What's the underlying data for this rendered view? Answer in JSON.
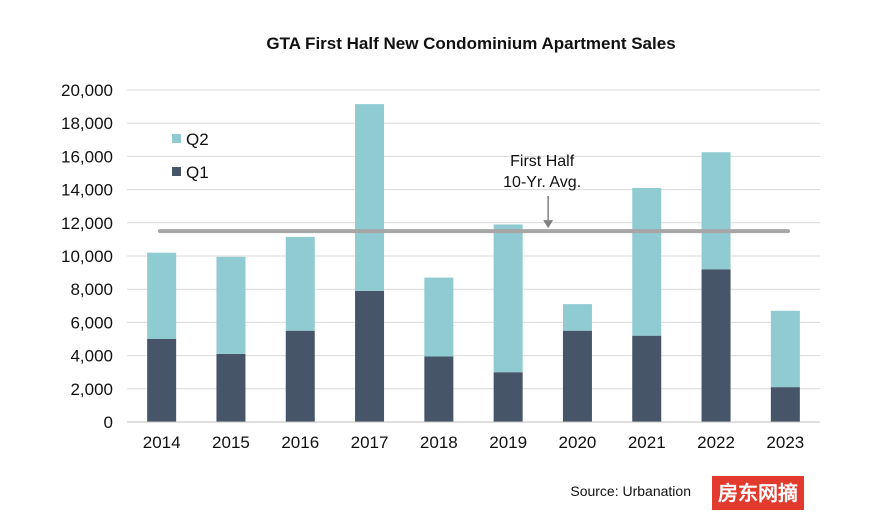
{
  "chart_data": {
    "type": "bar",
    "stacked": true,
    "title": "GTA First Half New Condominium Apartment Sales",
    "categories": [
      "2014",
      "2015",
      "2016",
      "2017",
      "2018",
      "2019",
      "2020",
      "2021",
      "2022",
      "2023"
    ],
    "series": [
      {
        "name": "Q1",
        "color": "#465568",
        "values": [
          5000,
          4100,
          5500,
          7900,
          3950,
          3000,
          5500,
          5200,
          9200,
          2100
        ]
      },
      {
        "name": "Q2",
        "color": "#8fcbd1",
        "values": [
          5200,
          5850,
          5650,
          11250,
          4750,
          8900,
          1600,
          8900,
          7050,
          4600
        ]
      }
    ],
    "ylim": [
      0,
      20000
    ],
    "yticks": [
      0,
      2000,
      4000,
      6000,
      8000,
      10000,
      12000,
      14000,
      16000,
      18000,
      20000
    ],
    "ytick_labels": [
      "0",
      "2,000",
      "4,000",
      "6,000",
      "8,000",
      "10,000",
      "12,000",
      "14,000",
      "16,000",
      "18,000",
      "20,000"
    ],
    "grid": true,
    "legend": {
      "placement": "top-left",
      "order": [
        "Q2",
        "Q1"
      ]
    },
    "reference_line": {
      "value": 11500,
      "color": "#a6a6a6",
      "label_line1": "First Half",
      "label_line2": "10-Yr. Avg.",
      "arrow_category": "2019"
    },
    "xlabel": "",
    "ylabel": "",
    "source": "Source:  Urbanation",
    "grid_color": "#d9d9d9",
    "axis_color": "#bfbfbf"
  },
  "watermark": {
    "text": "房东网摘",
    "background": "#e23b2e"
  }
}
